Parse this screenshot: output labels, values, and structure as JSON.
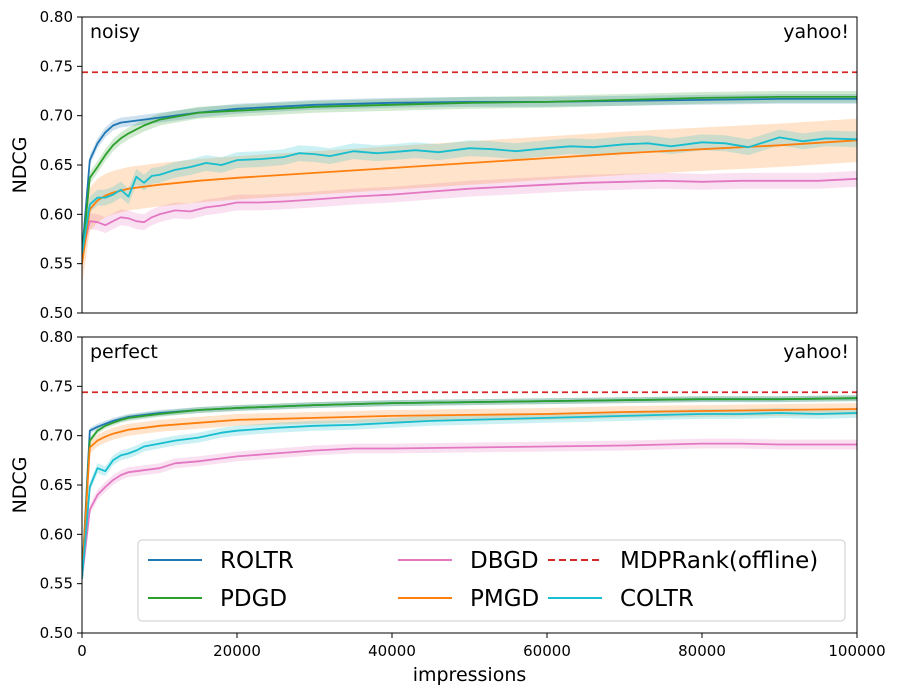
{
  "chart_data": [
    {
      "type": "line",
      "title": "",
      "corner_labels": {
        "left": "noisy",
        "right": "yahoo!"
      },
      "xlabel": "",
      "ylabel": "NDCG",
      "xlim": [
        0,
        100000
      ],
      "ylim": [
        0.5,
        0.8
      ],
      "yticks": [
        "0.50",
        "0.55",
        "0.60",
        "0.65",
        "0.70",
        "0.75",
        "0.80"
      ],
      "xticks": [],
      "grid": false,
      "series": [
        {
          "name": "ROLTR",
          "color": "#1f77b4",
          "band": 0.005,
          "x": [
            0,
            1000,
            2000,
            3000,
            4000,
            5000,
            6000,
            8000,
            10000,
            15000,
            20000,
            30000,
            40000,
            50000,
            60000,
            70000,
            80000,
            90000,
            100000
          ],
          "y": [
            0.56,
            0.655,
            0.672,
            0.683,
            0.69,
            0.693,
            0.694,
            0.696,
            0.698,
            0.703,
            0.707,
            0.711,
            0.713,
            0.714,
            0.714,
            0.715,
            0.716,
            0.717,
            0.717
          ]
        },
        {
          "name": "PDGD",
          "color": "#2ca02c",
          "band": 0.006,
          "x": [
            0,
            1000,
            2000,
            3000,
            4000,
            5000,
            6000,
            8000,
            10000,
            15000,
            20000,
            30000,
            40000,
            50000,
            60000,
            70000,
            80000,
            90000,
            100000
          ],
          "y": [
            0.555,
            0.637,
            0.648,
            0.66,
            0.67,
            0.677,
            0.682,
            0.69,
            0.696,
            0.703,
            0.705,
            0.709,
            0.711,
            0.713,
            0.714,
            0.716,
            0.718,
            0.719,
            0.719
          ]
        },
        {
          "name": "DBGD",
          "color": "#e377c2",
          "band": 0.008,
          "x": [
            0,
            1000,
            2000,
            3000,
            4000,
            5000,
            6000,
            7000,
            8000,
            9000,
            10000,
            12000,
            14000,
            16000,
            18000,
            20000,
            23000,
            26000,
            30000,
            35000,
            40000,
            45000,
            50000,
            55000,
            60000,
            65000,
            70000,
            75000,
            80000,
            85000,
            90000,
            95000,
            100000
          ],
          "y": [
            0.56,
            0.593,
            0.592,
            0.589,
            0.593,
            0.597,
            0.596,
            0.593,
            0.592,
            0.597,
            0.6,
            0.604,
            0.603,
            0.607,
            0.609,
            0.612,
            0.612,
            0.613,
            0.615,
            0.618,
            0.62,
            0.623,
            0.626,
            0.628,
            0.63,
            0.632,
            0.633,
            0.634,
            0.633,
            0.634,
            0.634,
            0.634,
            0.636
          ]
        },
        {
          "name": "PMGD",
          "color": "#ff7f0e",
          "band": 0.022,
          "x": [
            0,
            1000,
            2000,
            3000,
            4000,
            5000,
            6000,
            8000,
            10000,
            15000,
            20000,
            30000,
            40000,
            50000,
            60000,
            70000,
            80000,
            90000,
            100000
          ],
          "y": [
            0.55,
            0.605,
            0.614,
            0.619,
            0.622,
            0.624,
            0.626,
            0.628,
            0.63,
            0.634,
            0.637,
            0.642,
            0.647,
            0.652,
            0.657,
            0.662,
            0.666,
            0.67,
            0.675
          ]
        },
        {
          "name": "COLTR",
          "color": "#17becf",
          "band": 0.008,
          "x": [
            0,
            1000,
            2000,
            3000,
            4000,
            5000,
            6000,
            7000,
            8000,
            9000,
            10000,
            12000,
            14000,
            16000,
            18000,
            20000,
            23000,
            26000,
            28000,
            30000,
            32000,
            35000,
            38000,
            40000,
            43000,
            46000,
            50000,
            53000,
            56000,
            60000,
            63000,
            66000,
            70000,
            73000,
            76000,
            80000,
            83000,
            86000,
            90000,
            93000,
            96000,
            100000
          ],
          "y": [
            0.56,
            0.61,
            0.617,
            0.617,
            0.62,
            0.625,
            0.618,
            0.638,
            0.632,
            0.639,
            0.64,
            0.645,
            0.648,
            0.652,
            0.65,
            0.655,
            0.656,
            0.658,
            0.662,
            0.661,
            0.659,
            0.664,
            0.662,
            0.663,
            0.665,
            0.663,
            0.667,
            0.666,
            0.664,
            0.667,
            0.669,
            0.668,
            0.671,
            0.672,
            0.669,
            0.673,
            0.672,
            0.668,
            0.678,
            0.674,
            0.677,
            0.676
          ]
        }
      ],
      "reference": {
        "name": "MDPRank(offline)",
        "color": "#d62728",
        "y": 0.744
      }
    },
    {
      "type": "line",
      "title": "",
      "corner_labels": {
        "left": "perfect",
        "right": "yahoo!"
      },
      "xlabel": "impressions",
      "ylabel": "NDCG",
      "xlim": [
        0,
        100000
      ],
      "ylim": [
        0.5,
        0.8
      ],
      "yticks": [
        "0.50",
        "0.55",
        "0.60",
        "0.65",
        "0.70",
        "0.75",
        "0.80"
      ],
      "xticks": [
        "0",
        "20000",
        "40000",
        "60000",
        "80000",
        "100000"
      ],
      "grid": false,
      "series": [
        {
          "name": "ROLTR",
          "color": "#1f77b4",
          "band": 0.003,
          "x": [
            0,
            1000,
            2000,
            3000,
            4000,
            5000,
            6000,
            8000,
            10000,
            15000,
            20000,
            30000,
            40000,
            50000,
            60000,
            70000,
            80000,
            90000,
            100000
          ],
          "y": [
            0.555,
            0.705,
            0.709,
            0.712,
            0.715,
            0.717,
            0.719,
            0.721,
            0.723,
            0.726,
            0.728,
            0.731,
            0.733,
            0.734,
            0.735,
            0.736,
            0.737,
            0.737,
            0.738
          ]
        },
        {
          "name": "PDGD",
          "color": "#2ca02c",
          "band": 0.003,
          "x": [
            0,
            1000,
            2000,
            3000,
            4000,
            5000,
            6000,
            8000,
            10000,
            15000,
            20000,
            30000,
            40000,
            50000,
            60000,
            70000,
            80000,
            90000,
            100000
          ],
          "y": [
            0.555,
            0.695,
            0.705,
            0.71,
            0.713,
            0.716,
            0.718,
            0.72,
            0.722,
            0.726,
            0.728,
            0.731,
            0.733,
            0.734,
            0.735,
            0.736,
            0.737,
            0.737,
            0.738
          ]
        },
        {
          "name": "DBGD",
          "color": "#e377c2",
          "band": 0.005,
          "x": [
            0,
            1000,
            2000,
            3000,
            4000,
            5000,
            6000,
            8000,
            10000,
            12000,
            15000,
            18000,
            20000,
            25000,
            30000,
            35000,
            40000,
            50000,
            60000,
            70000,
            80000,
            85000,
            90000,
            100000
          ],
          "y": [
            0.555,
            0.625,
            0.64,
            0.648,
            0.655,
            0.66,
            0.663,
            0.665,
            0.667,
            0.672,
            0.674,
            0.677,
            0.679,
            0.682,
            0.685,
            0.687,
            0.687,
            0.688,
            0.689,
            0.69,
            0.692,
            0.692,
            0.691,
            0.691
          ]
        },
        {
          "name": "PMGD",
          "color": "#ff7f0e",
          "band": 0.006,
          "x": [
            0,
            1000,
            2000,
            3000,
            4000,
            5000,
            6000,
            8000,
            10000,
            15000,
            20000,
            30000,
            40000,
            50000,
            60000,
            70000,
            80000,
            90000,
            100000
          ],
          "y": [
            0.555,
            0.688,
            0.695,
            0.699,
            0.702,
            0.704,
            0.706,
            0.708,
            0.71,
            0.713,
            0.716,
            0.718,
            0.72,
            0.721,
            0.722,
            0.724,
            0.725,
            0.726,
            0.727
          ]
        },
        {
          "name": "COLTR",
          "color": "#17becf",
          "band": 0.005,
          "x": [
            0,
            1000,
            2000,
            3000,
            4000,
            5000,
            6000,
            7000,
            8000,
            10000,
            12000,
            15000,
            18000,
            20000,
            25000,
            30000,
            35000,
            40000,
            45000,
            50000,
            55000,
            60000,
            65000,
            70000,
            75000,
            80000,
            85000,
            90000,
            95000,
            100000
          ],
          "y": [
            0.555,
            0.648,
            0.667,
            0.664,
            0.675,
            0.68,
            0.682,
            0.685,
            0.689,
            0.692,
            0.695,
            0.698,
            0.703,
            0.705,
            0.708,
            0.71,
            0.711,
            0.713,
            0.715,
            0.716,
            0.717,
            0.718,
            0.719,
            0.72,
            0.721,
            0.722,
            0.722,
            0.723,
            0.722,
            0.723
          ]
        }
      ],
      "reference": {
        "name": "MDPRank(offline)",
        "color": "#d62728",
        "y": 0.744
      }
    }
  ],
  "legend": {
    "placement": "lower-center",
    "entries": [
      {
        "label": "ROLTR",
        "color": "#1f77b4",
        "dashed": false
      },
      {
        "label": "PDGD",
        "color": "#2ca02c",
        "dashed": false
      },
      {
        "label": "DBGD",
        "color": "#e377c2",
        "dashed": false
      },
      {
        "label": "PMGD",
        "color": "#ff7f0e",
        "dashed": false
      },
      {
        "label": "MDPRank(offline)",
        "color": "#d62728",
        "dashed": true
      },
      {
        "label": "COLTR",
        "color": "#17becf",
        "dashed": false
      }
    ]
  }
}
